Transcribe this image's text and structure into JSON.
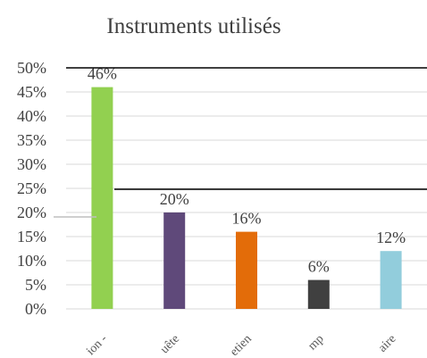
{
  "chart_data": {
    "type": "bar",
    "title": "Instruments utilisés",
    "categories": [
      "ion -",
      "uête",
      "etien",
      "mp",
      "aire"
    ],
    "values": [
      46,
      20,
      16,
      6,
      12
    ],
    "data_labels": [
      "46%",
      "20%",
      "16%",
      "6%",
      "12%"
    ],
    "colors": [
      "#92d050",
      "#5f497a",
      "#e36c09",
      "#404040",
      "#92cddc"
    ],
    "ylim": [
      0,
      50
    ],
    "yticks": [
      "0%",
      "5%",
      "10%",
      "15%",
      "20%",
      "25%",
      "30%",
      "35%",
      "40%",
      "45%",
      "50%"
    ],
    "ytick_values": [
      0,
      5,
      10,
      15,
      20,
      25,
      30,
      35,
      40,
      45,
      50
    ],
    "grid": true,
    "xlabel": "",
    "ylabel": "",
    "legend": "none"
  }
}
